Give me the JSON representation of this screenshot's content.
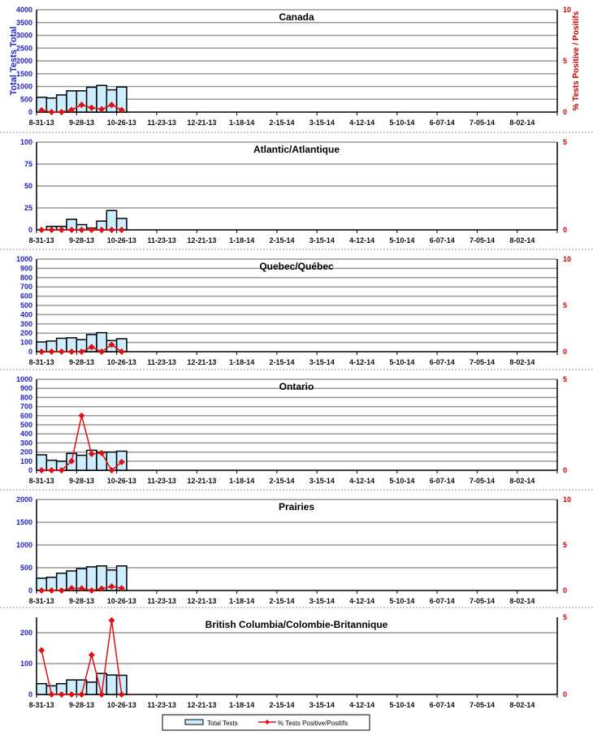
{
  "chart_data": [
    {
      "type": "bar+line",
      "title": "Canada",
      "ylabel": "Total Tests Total",
      "y2label": "% Tests Positive / Positifs",
      "ylim": [
        0,
        4000
      ],
      "ystep": 500,
      "y2lim": [
        0,
        10
      ],
      "y2step": 5,
      "bars": [
        580,
        550,
        670,
        830,
        830,
        970,
        1040,
        870,
        980
      ],
      "line": [
        0.18,
        0,
        0,
        0.22,
        0.7,
        0.42,
        0.28,
        0.7,
        0.2
      ]
    },
    {
      "type": "bar+line",
      "title": "Atlantic/Atlantique",
      "ylim": [
        0,
        100
      ],
      "ystep": 25,
      "y2lim": [
        0,
        5
      ],
      "y2step": 5,
      "bars": [
        0,
        4,
        4,
        12,
        6,
        2,
        10,
        22,
        13
      ],
      "line": [
        0,
        0,
        0,
        0,
        0,
        0,
        0,
        0,
        0
      ]
    },
    {
      "type": "bar+line",
      "title": "Quebec/Québec",
      "ylim": [
        0,
        1000
      ],
      "ystep": 100,
      "y2lim": [
        0,
        10
      ],
      "y2step": 5,
      "bars": [
        105,
        115,
        145,
        150,
        130,
        185,
        205,
        120,
        140
      ],
      "line": [
        0,
        0,
        0,
        0,
        0,
        0.5,
        0,
        0.75,
        0
      ]
    },
    {
      "type": "bar+line",
      "title": "Ontario",
      "ylim": [
        0,
        1000
      ],
      "ystep": 100,
      "y2lim": [
        0,
        5
      ],
      "y2step": 5,
      "bars": [
        170,
        110,
        100,
        185,
        165,
        220,
        200,
        200,
        210
      ],
      "line": [
        0,
        0,
        0,
        0.5,
        3.0,
        0.9,
        0.95,
        0,
        0.45
      ]
    },
    {
      "type": "bar+line",
      "title": "Prairies",
      "ylim": [
        0,
        2000
      ],
      "ystep": 500,
      "y2lim": [
        0,
        10
      ],
      "y2step": 5,
      "bars": [
        270,
        290,
        380,
        430,
        480,
        520,
        540,
        450,
        540
      ],
      "line": [
        0,
        0,
        0,
        0.25,
        0.22,
        0,
        0.2,
        0.45,
        0.25
      ]
    },
    {
      "type": "bar+line",
      "title": "British Columbia/Colombie-Britannique",
      "ylim": [
        0,
        250
      ],
      "ystep": 100,
      "y2lim": [
        0,
        5
      ],
      "y2step": 5,
      "bars": [
        35,
        28,
        35,
        47,
        47,
        40,
        68,
        63,
        62
      ],
      "line": [
        2.86,
        0,
        0,
        0,
        0,
        2.56,
        0,
        4.8,
        0
      ]
    }
  ],
  "x_labels": [
    "8-31-13",
    "9-28-13",
    "10-26-13",
    "11-23-13",
    "12-21-13",
    "1-18-14",
    "2-15-14",
    "3-15-14",
    "4-12-14",
    "5-10-14",
    "6-07-14",
    "7-05-14",
    "8-02-14"
  ],
  "weeks": 52,
  "legend": {
    "bars": "Total Tests",
    "line": "% Tests Positive/Positifs"
  },
  "colors": {
    "bar": "#cceeff",
    "line": "#dd1111",
    "axis": "#2222cc",
    "axis2": "#cc0000"
  }
}
